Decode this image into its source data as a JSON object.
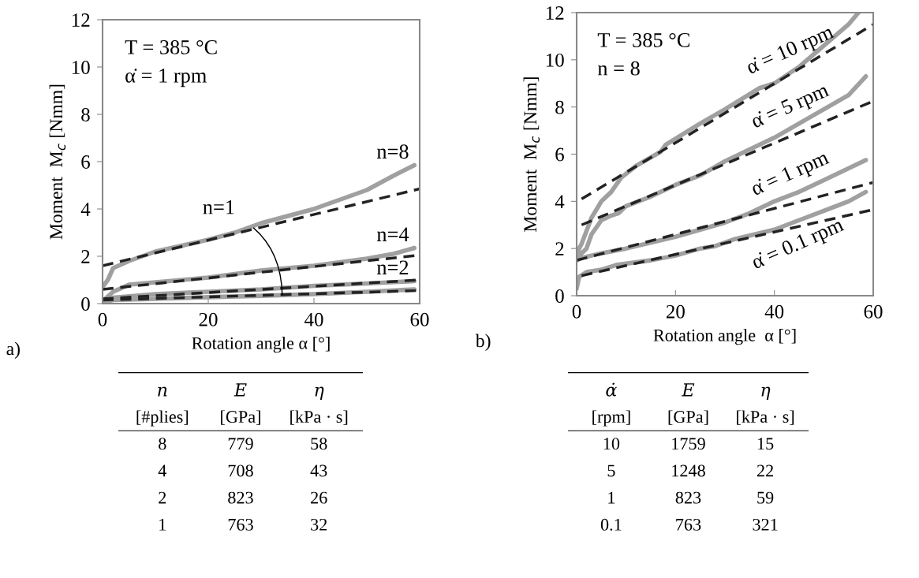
{
  "chart_data": [
    {
      "type": "line",
      "xlabel": "Rotation angle α [°]",
      "ylabel": "Moment  M$_{c}$ [Nmm]",
      "xlim": [
        0,
        60
      ],
      "ylim": [
        0,
        12
      ],
      "xticks": [
        0,
        20,
        40,
        60
      ],
      "yticks": [
        0,
        2,
        4,
        6,
        8,
        10,
        12
      ],
      "grid": false,
      "legend": false,
      "marker": "none",
      "series": [
        {
          "name": "n=8",
          "color": "#a0a0a0",
          "line_style": "solid",
          "x": [
            0,
            1,
            2,
            5,
            10,
            20,
            25,
            30,
            35,
            40,
            45,
            50,
            55,
            59
          ],
          "values": [
            0.7,
            1.0,
            1.5,
            1.8,
            2.2,
            2.7,
            3.0,
            3.4,
            3.7,
            4.0,
            4.4,
            4.8,
            5.4,
            5.85
          ]
        },
        {
          "name": "n=4",
          "color": "#a0a0a0",
          "line_style": "solid",
          "x": [
            0,
            2,
            5,
            10,
            20,
            30,
            40,
            50,
            55,
            59
          ],
          "values": [
            0.1,
            0.5,
            0.8,
            0.9,
            1.1,
            1.4,
            1.6,
            1.9,
            2.1,
            2.35
          ]
        },
        {
          "name": "n=2",
          "color": "#a0a0a0",
          "line_style": "solid",
          "x": [
            0,
            2,
            10,
            20,
            30,
            40,
            50,
            59
          ],
          "values": [
            0.1,
            0.25,
            0.4,
            0.5,
            0.6,
            0.75,
            0.85,
            0.95
          ]
        },
        {
          "name": "n=1",
          "color": "#a0a0a0",
          "line_style": "solid",
          "x": [
            0,
            2,
            10,
            20,
            30,
            40,
            50,
            59
          ],
          "values": [
            0.05,
            0.15,
            0.2,
            0.27,
            0.33,
            0.4,
            0.5,
            0.6
          ]
        },
        {
          "color": "#222222",
          "line_style": "dashed",
          "x": [
            0,
            60
          ],
          "values": [
            1.6,
            4.85
          ]
        },
        {
          "color": "#222222",
          "line_style": "dashed",
          "x": [
            0,
            60
          ],
          "values": [
            0.6,
            2.05
          ]
        },
        {
          "color": "#222222",
          "line_style": "dashed",
          "x": [
            0,
            60
          ],
          "values": [
            0.2,
            1.0
          ]
        },
        {
          "color": "#222222",
          "line_style": "dashed",
          "x": [
            0,
            60
          ],
          "values": [
            0.15,
            0.55
          ]
        }
      ],
      "annotations": [
        "T = 385 °C",
        "α̇ = 1 rpm",
        "a)"
      ]
    },
    {
      "type": "line",
      "xlabel": "Rotation angle  α [°]",
      "ylabel": "Moment  M$_{c}$ [Nmm]",
      "xlim": [
        0,
        60
      ],
      "ylim": [
        0,
        12
      ],
      "xticks": [
        0,
        20,
        40,
        60
      ],
      "yticks": [
        0,
        2,
        4,
        6,
        8,
        10,
        12
      ],
      "grid": false,
      "legend": false,
      "marker": "none",
      "series": [
        {
          "name": "α̇ = 10 rpm",
          "color": "#a0a0a0",
          "line_style": "solid",
          "x": [
            0,
            0.5,
            1,
            3,
            5,
            7,
            9,
            12,
            17,
            18,
            25,
            30,
            37,
            40,
            45,
            50,
            55,
            57
          ],
          "values": [
            1.5,
            2.0,
            2.2,
            3.3,
            4.0,
            4.4,
            5.0,
            5.5,
            6.1,
            6.4,
            7.3,
            7.9,
            8.8,
            9.0,
            9.7,
            10.6,
            11.5,
            12.0
          ]
        },
        {
          "name": "α̇ = 5 rpm",
          "color": "#a0a0a0",
          "line_style": "solid",
          "x": [
            0,
            1,
            2,
            3,
            5,
            7,
            8.5,
            10,
            15,
            20,
            25,
            30,
            35,
            40,
            45,
            50,
            55,
            58.5
          ],
          "values": [
            1.5,
            1.8,
            2.0,
            2.6,
            3.2,
            3.4,
            3.5,
            3.8,
            4.2,
            4.7,
            5.1,
            5.7,
            6.2,
            6.7,
            7.3,
            7.9,
            8.5,
            9.3
          ]
        },
        {
          "name": "α̇ = 1 rpm",
          "color": "#a0a0a0",
          "line_style": "solid",
          "x": [
            0,
            1,
            5,
            10,
            20,
            30,
            35,
            40,
            45,
            50,
            55,
            58.5
          ],
          "values": [
            1.5,
            1.6,
            1.8,
            2.0,
            2.5,
            3.1,
            3.5,
            4.0,
            4.4,
            4.9,
            5.4,
            5.75
          ]
        },
        {
          "name": "α̇ = 0.1 rpm",
          "color": "#a0a0a0",
          "line_style": "solid",
          "x": [
            0,
            0.5,
            2,
            5,
            8,
            15,
            20,
            25,
            28,
            32,
            40,
            45,
            50,
            55,
            58.5
          ],
          "values": [
            0.3,
            0.8,
            1.0,
            1.1,
            1.3,
            1.5,
            1.7,
            2.0,
            2.1,
            2.4,
            2.8,
            3.2,
            3.6,
            4.0,
            4.4
          ]
        },
        {
          "color": "#222222",
          "line_style": "dashed",
          "x": [
            1,
            60
          ],
          "values": [
            4.1,
            11.5
          ]
        },
        {
          "color": "#222222",
          "line_style": "dashed",
          "x": [
            1,
            60
          ],
          "values": [
            3.0,
            8.25
          ]
        },
        {
          "color": "#222222",
          "line_style": "dashed",
          "x": [
            0,
            60
          ],
          "values": [
            1.5,
            4.8
          ]
        },
        {
          "color": "#222222",
          "line_style": "dashed",
          "x": [
            1,
            60
          ],
          "values": [
            0.85,
            3.65
          ]
        }
      ],
      "annotations": [
        "T = 385 °C",
        "n = 8",
        "b)"
      ]
    },
    {
      "type": "other",
      "annotations": [
        "n",
        "E",
        "η",
        "[#plies]",
        "[GPa]",
        "[kPa · s]",
        "8",
        "779",
        "58",
        "4",
        "708",
        "43",
        "2",
        "823",
        "26",
        "1",
        "763",
        "32"
      ]
    },
    {
      "type": "other",
      "annotations": [
        "α̇",
        "E",
        "η",
        "[rpm]",
        "[GPa]",
        "[kPa · s]",
        "10",
        "1759",
        "15",
        "5",
        "1248",
        "22",
        "1",
        "823",
        "59",
        "0.1",
        "763",
        "321"
      ]
    }
  ]
}
